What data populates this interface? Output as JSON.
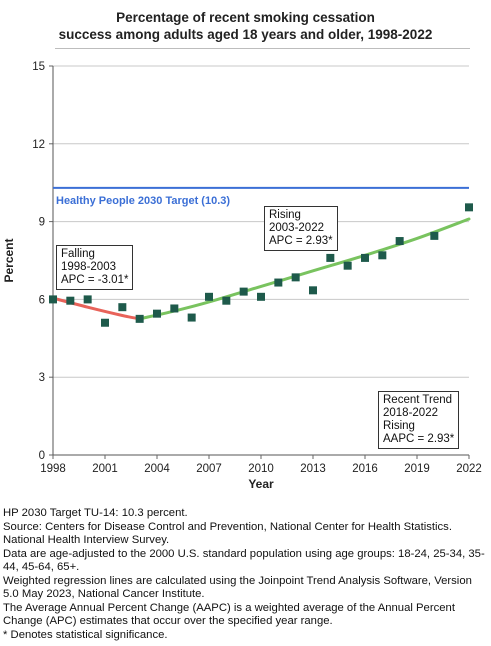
{
  "chart_data": {
    "type": "scatter",
    "title_lines": [
      "Percentage of recent smoking cessation",
      "success among adults aged 18 years and older, 1998-2022"
    ],
    "xlabel": "Year",
    "ylabel": "Percent",
    "xlim": [
      1998,
      2022
    ],
    "ylim": [
      0,
      15
    ],
    "x_ticks": [
      "1998",
      "2001",
      "2004",
      "2007",
      "2010",
      "2013",
      "2016",
      "2019",
      "2022"
    ],
    "y_ticks": [
      "0",
      "3",
      "6",
      "9",
      "12",
      "15"
    ],
    "grid": true,
    "target": {
      "label": "Healthy People 2030 Target (10.3)",
      "value": 10.3,
      "color": "#3b6fd6"
    },
    "points": [
      {
        "x": 1998,
        "y": 6.0
      },
      {
        "x": 1999,
        "y": 5.95
      },
      {
        "x": 2000,
        "y": 6.0
      },
      {
        "x": 2001,
        "y": 5.1
      },
      {
        "x": 2002,
        "y": 5.7
      },
      {
        "x": 2003,
        "y": 5.25
      },
      {
        "x": 2004,
        "y": 5.45
      },
      {
        "x": 2005,
        "y": 5.65
      },
      {
        "x": 2006,
        "y": 5.3
      },
      {
        "x": 2007,
        "y": 6.1
      },
      {
        "x": 2008,
        "y": 5.95
      },
      {
        "x": 2009,
        "y": 6.3
      },
      {
        "x": 2010,
        "y": 6.1
      },
      {
        "x": 2011,
        "y": 6.65
      },
      {
        "x": 2012,
        "y": 6.85
      },
      {
        "x": 2013,
        "y": 6.35
      },
      {
        "x": 2014,
        "y": 7.6
      },
      {
        "x": 2015,
        "y": 7.3
      },
      {
        "x": 2016,
        "y": 7.6
      },
      {
        "x": 2017,
        "y": 7.7
      },
      {
        "x": 2018,
        "y": 8.25
      },
      {
        "x": 2020,
        "y": 8.45
      },
      {
        "x": 2022,
        "y": 9.55
      }
    ],
    "point_color": "#1e5a4b",
    "trend_segments": [
      {
        "name": "Falling",
        "color": "#e8635a",
        "x": [
          1998,
          2000,
          2002,
          2003
        ],
        "y": [
          6.05,
          5.7,
          5.38,
          5.25
        ]
      },
      {
        "name": "Rising",
        "color": "#79c35f",
        "x": [
          2003,
          2005,
          2007,
          2010,
          2013,
          2016,
          2019,
          2022
        ],
        "y": [
          5.25,
          5.55,
          5.9,
          6.5,
          7.1,
          7.7,
          8.35,
          9.1
        ]
      }
    ],
    "annotations": [
      {
        "lines": [
          "Falling",
          "1998-2003",
          "APC = -3.01*"
        ]
      },
      {
        "lines": [
          "Rising",
          "2003-2022",
          "APC =  2.93*"
        ]
      },
      {
        "lines": [
          "Recent Trend",
          "2018-2022",
          "Rising",
          "AAPC =  2.93*"
        ]
      }
    ]
  },
  "footnotes": [
    "HP 2030 Target TU-14: 10.3 percent.",
    "Source: Centers for Disease Control and Prevention, National Center for Health Statistics. National Health Interview Survey.",
    "Data are age-adjusted to the 2000 U.S. standard population using age groups: 18-24, 25-34, 35-44, 45-64, 65+.",
    "Weighted regression lines are calculated using the Joinpoint Trend Analysis Software, Version 5.0 May 2023, National Cancer Institute.",
    "The Average Annual Percent Change (AAPC) is a weighted average of the Annual Percent Change (APC) estimates that occur over the specified year range.",
    "* Denotes statistical significance."
  ]
}
